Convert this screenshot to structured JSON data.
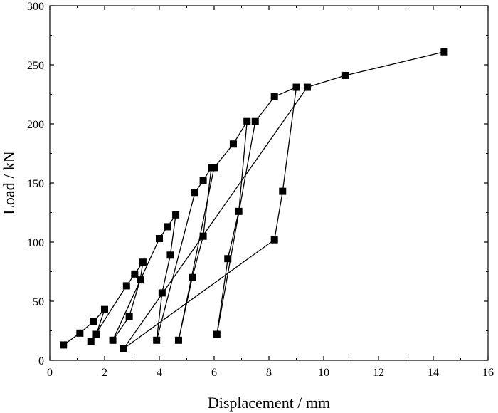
{
  "chart_data": {
    "type": "scatter",
    "title": "",
    "xlabel": "Displacement / mm",
    "ylabel": "Load / kN",
    "xlim": [
      0,
      16
    ],
    "ylim": [
      0,
      300
    ],
    "xticks": [
      "0",
      "2",
      "4",
      "6",
      "8",
      "10",
      "12",
      "14",
      "16"
    ],
    "yticks": [
      "0",
      "50",
      "100",
      "150",
      "200",
      "250",
      "300"
    ],
    "grid": false,
    "legend": "none",
    "marker": "square",
    "line_color": "#000000",
    "series": [
      {
        "x": [
          0.5,
          1.1,
          1.6,
          2.0,
          1.7,
          1.5,
          2.8,
          3.1,
          3.4,
          3.3,
          2.9,
          2.3,
          4.0,
          4.3,
          4.6,
          4.4,
          4.1,
          3.9,
          5.3,
          5.6,
          5.9,
          5.6,
          5.2,
          4.7,
          6.0,
          6.7,
          7.2,
          6.9,
          6.5,
          6.1,
          7.5,
          8.2,
          9.0,
          8.5,
          8.2,
          2.7,
          9.4,
          10.8,
          14.4
        ],
        "y": [
          13,
          23,
          33,
          43,
          22,
          16,
          63,
          73,
          83,
          68,
          37,
          17,
          103,
          113,
          123,
          89,
          57,
          17,
          142,
          152,
          163,
          105,
          70,
          17,
          163,
          183,
          202,
          126,
          86,
          22,
          202,
          223,
          231,
          143,
          102,
          10,
          231,
          241,
          261
        ]
      }
    ]
  }
}
